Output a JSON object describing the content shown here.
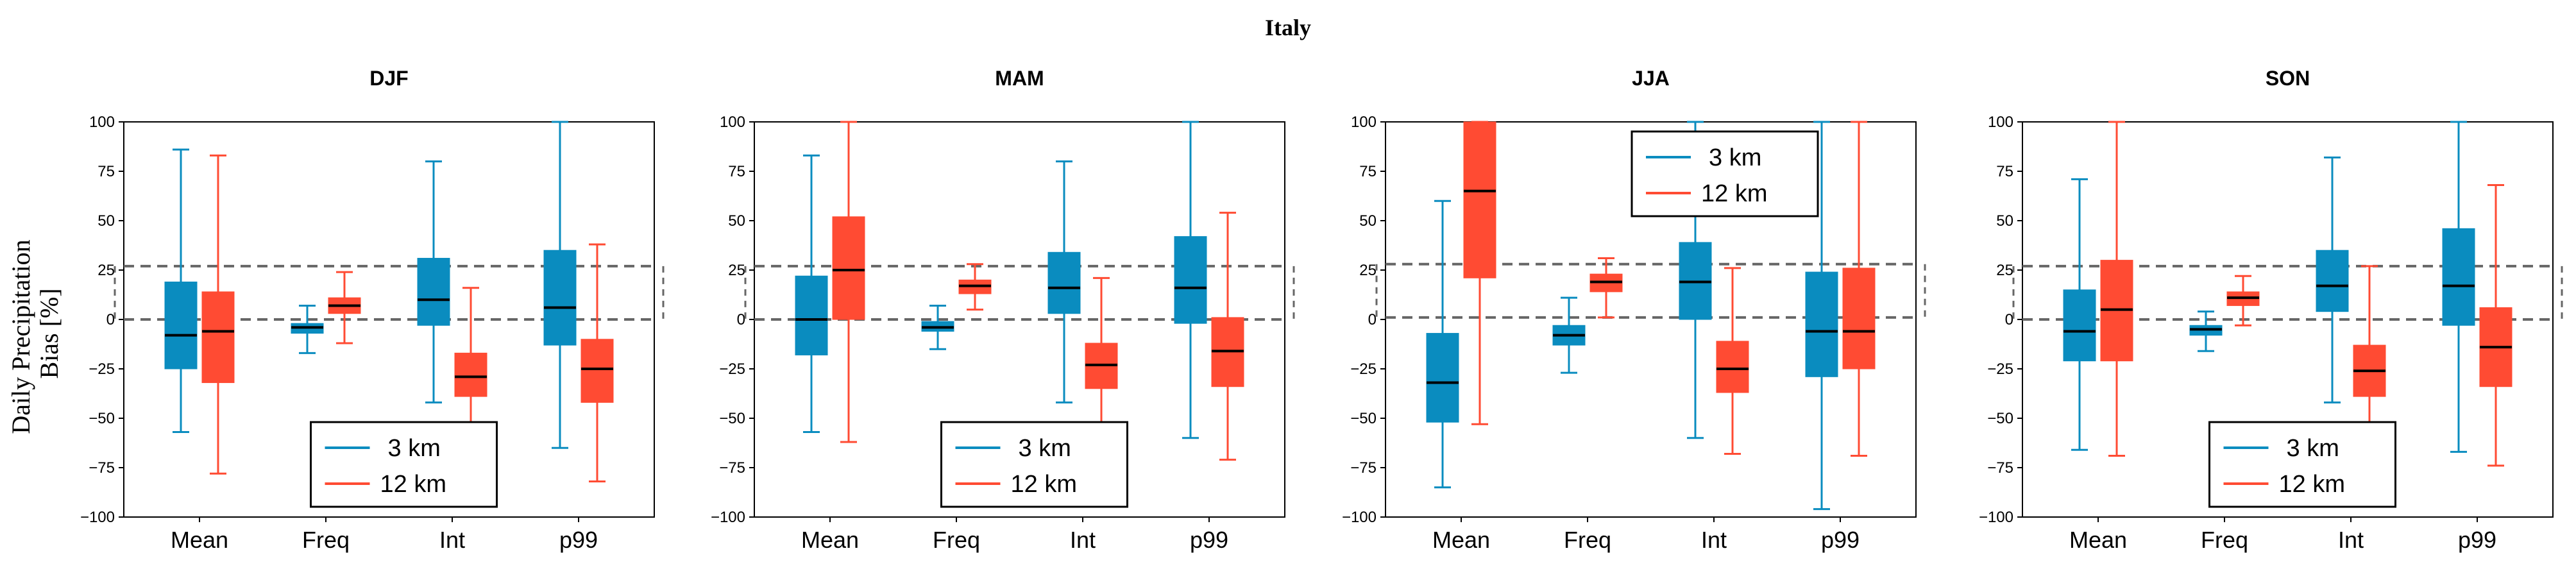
{
  "figure": {
    "title": "Italy",
    "ylabel_line1": "Daily Precipitation",
    "ylabel_line2": "Bias [%]"
  },
  "colors": {
    "3 km": "#0a8cbf",
    "12 km": "#ff4b33",
    "reference_lines": "#666666",
    "median": "#000000"
  },
  "chart_data": [
    {
      "type": "box",
      "title": "DJF",
      "categories": [
        "Mean",
        "Freq",
        "Int",
        "p99"
      ],
      "yticks": [
        "100",
        "75",
        "50",
        "25",
        "0",
        "−25",
        "−50",
        "−75",
        "−100"
      ],
      "ylim": [
        -100,
        100
      ],
      "reference_lines": [
        27,
        0
      ],
      "legend": {
        "placement": "lower-center",
        "entries": [
          "3 km",
          "12 km"
        ]
      },
      "series": [
        {
          "name": "3 km",
          "boxes": [
            {
              "whislo": -57,
              "q1": -25,
              "med": -8,
              "q3": 19,
              "whishi": 86
            },
            {
              "whislo": -17,
              "q1": -7,
              "med": -4,
              "q3": -2,
              "whishi": 7
            },
            {
              "whislo": -42,
              "q1": -3,
              "med": 10,
              "q3": 31,
              "whishi": 80
            },
            {
              "whislo": -65,
              "q1": -13,
              "med": 6,
              "q3": 35,
              "whishi": 100
            }
          ]
        },
        {
          "name": "12 km",
          "boxes": [
            {
              "whislo": -78,
              "q1": -32,
              "med": -6,
              "q3": 14,
              "whishi": 83
            },
            {
              "whislo": -12,
              "q1": 3,
              "med": 7,
              "q3": 11,
              "whishi": 24
            },
            {
              "whislo": -72,
              "q1": -39,
              "med": -29,
              "q3": -17,
              "whishi": 16
            },
            {
              "whislo": -82,
              "q1": -42,
              "med": -25,
              "q3": -10,
              "whishi": 38
            }
          ]
        }
      ]
    },
    {
      "type": "box",
      "title": "MAM",
      "categories": [
        "Mean",
        "Freq",
        "Int",
        "p99"
      ],
      "yticks": [
        "100",
        "75",
        "50",
        "25",
        "0",
        "−25",
        "−50",
        "−75",
        "−100"
      ],
      "ylim": [
        -100,
        100
      ],
      "reference_lines": [
        27,
        0
      ],
      "legend": {
        "placement": "lower-center",
        "entries": [
          "3 km",
          "12 km"
        ]
      },
      "series": [
        {
          "name": "3 km",
          "boxes": [
            {
              "whislo": -57,
              "q1": -18,
              "med": 0,
              "q3": 22,
              "whishi": 83
            },
            {
              "whislo": -15,
              "q1": -6,
              "med": -4,
              "q3": -1,
              "whishi": 7
            },
            {
              "whislo": -42,
              "q1": 3,
              "med": 16,
              "q3": 34,
              "whishi": 80
            },
            {
              "whislo": -60,
              "q1": -2,
              "med": 16,
              "q3": 42,
              "whishi": 100
            }
          ]
        },
        {
          "name": "12 km",
          "boxes": [
            {
              "whislo": -62,
              "q1": 0,
              "med": 25,
              "q3": 52,
              "whishi": 100
            },
            {
              "whislo": 5,
              "q1": 13,
              "med": 17,
              "q3": 20,
              "whishi": 28
            },
            {
              "whislo": -63,
              "q1": -35,
              "med": -23,
              "q3": -12,
              "whishi": 21
            },
            {
              "whislo": -71,
              "q1": -34,
              "med": -16,
              "q3": 1,
              "whishi": 54
            }
          ]
        }
      ]
    },
    {
      "type": "box",
      "title": "JJA",
      "categories": [
        "Mean",
        "Freq",
        "Int",
        "p99"
      ],
      "yticks": [
        "100",
        "75",
        "50",
        "25",
        "0",
        "−25",
        "−50",
        "−75",
        "−100"
      ],
      "ylim": [
        -100,
        100
      ],
      "reference_lines": [
        28,
        1
      ],
      "legend": {
        "placement": "upper-left",
        "entries": [
          "3 km",
          "12 km"
        ]
      },
      "series": [
        {
          "name": "3 km",
          "boxes": [
            {
              "whislo": -85,
              "q1": -52,
              "med": -32,
              "q3": -7,
              "whishi": 60
            },
            {
              "whislo": -27,
              "q1": -13,
              "med": -8,
              "q3": -3,
              "whishi": 11
            },
            {
              "whislo": -60,
              "q1": 0,
              "med": 19,
              "q3": 39,
              "whishi": 100
            },
            {
              "whislo": -96,
              "q1": -29,
              "med": -6,
              "q3": 24,
              "whishi": 100
            }
          ]
        },
        {
          "name": "12 km",
          "boxes": [
            {
              "whislo": -53,
              "q1": 21,
              "med": 65,
              "q3": 100,
              "whishi": 100
            },
            {
              "whislo": 1,
              "q1": 14,
              "med": 19,
              "q3": 23,
              "whishi": 31
            },
            {
              "whislo": -68,
              "q1": -37,
              "med": -25,
              "q3": -11,
              "whishi": 26
            },
            {
              "whislo": -69,
              "q1": -25,
              "med": -6,
              "q3": 26,
              "whishi": 100
            }
          ]
        }
      ]
    },
    {
      "type": "box",
      "title": "SON",
      "categories": [
        "Mean",
        "Freq",
        "Int",
        "p99"
      ],
      "yticks": [
        "100",
        "75",
        "50",
        "25",
        "0",
        "−25",
        "−50",
        "−75",
        "−100"
      ],
      "ylim": [
        -100,
        100
      ],
      "reference_lines": [
        27,
        0
      ],
      "legend": {
        "placement": "lower-center",
        "entries": [
          "3 km",
          "12 km"
        ]
      },
      "series": [
        {
          "name": "3 km",
          "boxes": [
            {
              "whislo": -66,
              "q1": -21,
              "med": -6,
              "q3": 15,
              "whishi": 71
            },
            {
              "whislo": -16,
              "q1": -8,
              "med": -5,
              "q3": -3,
              "whishi": 4
            },
            {
              "whislo": -42,
              "q1": 4,
              "med": 17,
              "q3": 35,
              "whishi": 82
            },
            {
              "whislo": -67,
              "q1": -3,
              "med": 17,
              "q3": 46,
              "whishi": 100
            }
          ]
        },
        {
          "name": "12 km",
          "boxes": [
            {
              "whislo": -69,
              "q1": -21,
              "med": 5,
              "q3": 30,
              "whishi": 100
            },
            {
              "whislo": -3,
              "q1": 7,
              "med": 11,
              "q3": 14,
              "whishi": 22
            },
            {
              "whislo": -69,
              "q1": -39,
              "med": -26,
              "q3": -13,
              "whishi": 27
            },
            {
              "whislo": -74,
              "q1": -34,
              "med": -14,
              "q3": 6,
              "whishi": 68
            }
          ]
        }
      ]
    }
  ]
}
